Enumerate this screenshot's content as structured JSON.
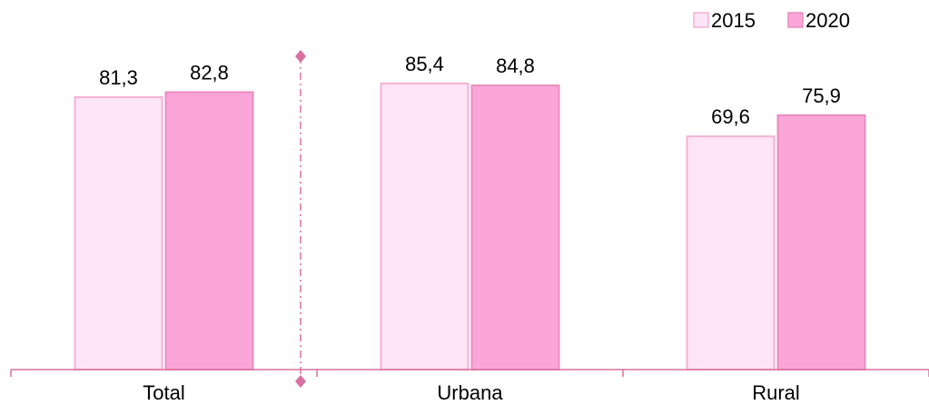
{
  "chart_data": {
    "type": "bar",
    "title": "",
    "xlabel": "",
    "ylabel": "",
    "categories": [
      "Total",
      "Urbana",
      "Rural"
    ],
    "series": [
      {
        "name": "2015",
        "values": [
          81.3,
          85.4,
          69.6
        ],
        "labels": [
          "81,3",
          "85,4",
          "69,6"
        ],
        "color": "#fde4f6",
        "stroke": "#f3b2d6"
      },
      {
        "name": "2020",
        "values": [
          82.8,
          84.8,
          75.9
        ],
        "labels": [
          "82,8",
          "84,8",
          "75,9"
        ],
        "color": "#fba6d9",
        "stroke": "#e98cc0"
      }
    ],
    "ylim": [
      0,
      100
    ],
    "grid": false,
    "legend_position": "top-right",
    "axis_color": "#d9709f",
    "separator": {
      "after_category": 0,
      "style": "dash-dot",
      "color": "#d9709f"
    }
  }
}
